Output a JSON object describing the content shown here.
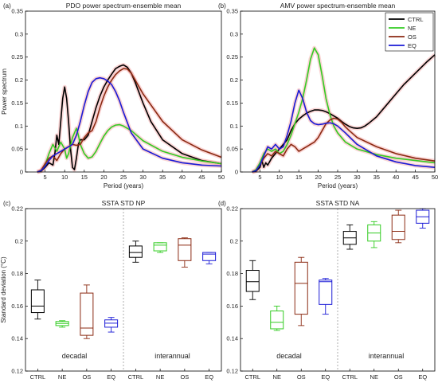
{
  "colors": {
    "CTRL": "#000000",
    "NE": "#33cc22",
    "OS": "#8b2a12",
    "EQ": "#1a1ad6",
    "band": "#f6b3b3",
    "divider": "#999999"
  },
  "chart_data": [
    {
      "type": "line",
      "panel_label": "(a)",
      "title": "PDO power spectrum-ensemble mean",
      "xlabel": "Period (years)",
      "ylabel": "Power spectrum",
      "xlim": [
        0,
        50
      ],
      "ylim": [
        0,
        0.35
      ],
      "xticks": [
        "5",
        "10",
        "15",
        "20",
        "25",
        "30",
        "35",
        "40",
        "45",
        "50"
      ],
      "yticks": [
        "0",
        "0.05",
        "0.1",
        "0.15",
        "0.2",
        "0.25",
        "0.3",
        "0.35"
      ],
      "grid": false,
      "series": [
        {
          "name": "CTRL",
          "x": [
            3,
            4,
            5,
            6,
            7,
            7.5,
            8,
            8.5,
            9,
            9.5,
            10,
            10.5,
            11,
            11.5,
            12,
            12.5,
            13,
            13.5,
            14,
            15,
            16,
            17,
            18,
            19,
            20,
            21,
            22,
            23,
            24,
            25,
            26,
            27,
            28,
            30,
            32,
            35,
            40,
            45,
            50
          ],
          "y": [
            0,
            0.002,
            0.01,
            0.02,
            0.015,
            0.04,
            0.08,
            0.06,
            0.11,
            0.16,
            0.185,
            0.16,
            0.11,
            0.05,
            0.01,
            0.005,
            0.03,
            0.06,
            0.07,
            0.07,
            0.08,
            0.11,
            0.14,
            0.165,
            0.185,
            0.2,
            0.213,
            0.225,
            0.23,
            0.233,
            0.228,
            0.215,
            0.195,
            0.15,
            0.11,
            0.07,
            0.04,
            0.025,
            0.018
          ]
        },
        {
          "name": "NE",
          "x": [
            3,
            4,
            5,
            6,
            7,
            8,
            9,
            10,
            10.5,
            11,
            12,
            13,
            13.5,
            14,
            15,
            16,
            17,
            18,
            19,
            20,
            21,
            22,
            23,
            24,
            25,
            27,
            30,
            35,
            40,
            45,
            50
          ],
          "y": [
            0,
            0.003,
            0.015,
            0.04,
            0.06,
            0.045,
            0.065,
            0.05,
            0.03,
            0.04,
            0.075,
            0.095,
            0.08,
            0.06,
            0.04,
            0.03,
            0.033,
            0.045,
            0.062,
            0.078,
            0.09,
            0.098,
            0.102,
            0.103,
            0.1,
            0.09,
            0.068,
            0.045,
            0.032,
            0.024,
            0.018
          ]
        },
        {
          "name": "OS",
          "x": [
            3,
            4,
            5,
            6,
            7,
            8,
            9,
            10,
            11,
            12,
            13,
            14,
            15,
            16,
            17,
            18,
            19,
            20,
            21,
            22,
            23,
            24,
            25,
            26,
            27,
            28,
            30,
            35,
            40,
            45,
            50
          ],
          "y": [
            0,
            0.004,
            0.018,
            0.03,
            0.035,
            0.025,
            0.04,
            0.05,
            0.055,
            0.06,
            0.058,
            0.06,
            0.075,
            0.085,
            0.09,
            0.11,
            0.14,
            0.165,
            0.185,
            0.2,
            0.212,
            0.22,
            0.225,
            0.224,
            0.215,
            0.2,
            0.17,
            0.11,
            0.07,
            0.048,
            0.032
          ]
        },
        {
          "name": "EQ",
          "x": [
            3,
            4,
            5,
            6,
            7,
            8,
            9,
            10,
            11,
            12,
            13,
            14,
            15,
            16,
            17,
            18,
            19,
            20,
            21,
            22,
            23,
            24,
            25,
            27,
            30,
            35,
            40,
            45,
            50
          ],
          "y": [
            0,
            0.003,
            0.012,
            0.025,
            0.035,
            0.04,
            0.045,
            0.05,
            0.055,
            0.06,
            0.08,
            0.11,
            0.145,
            0.175,
            0.195,
            0.203,
            0.205,
            0.203,
            0.198,
            0.19,
            0.175,
            0.155,
            0.13,
            0.085,
            0.05,
            0.03,
            0.02,
            0.015,
            0.013
          ]
        }
      ]
    },
    {
      "type": "line",
      "panel_label": "(b)",
      "title": "AMV power spectrum-ensemble mean",
      "xlabel": "Period (years)",
      "ylabel": "",
      "xlim": [
        0,
        50
      ],
      "ylim": [
        0,
        0.35
      ],
      "xticks": [
        "5",
        "10",
        "15",
        "20",
        "25",
        "30",
        "35",
        "40",
        "45",
        "50"
      ],
      "yticks": [
        "0",
        "0.05",
        "0.1",
        "0.15",
        "0.2",
        "0.25",
        "0.3",
        "0.35"
      ],
      "legend": [
        "CTRL",
        "NE",
        "OS",
        "EQ"
      ],
      "legend_position": "top-right",
      "grid": false,
      "series": [
        {
          "name": "CTRL",
          "x": [
            3,
            4,
            5,
            5.5,
            6,
            6.5,
            7,
            8,
            9,
            10,
            11,
            12,
            13,
            14,
            15,
            16,
            17,
            18,
            19,
            20,
            21,
            22,
            23,
            24,
            25,
            26,
            27,
            28,
            29,
            30,
            31,
            32,
            33,
            35,
            38,
            40,
            42,
            45,
            48,
            50
          ],
          "y": [
            0,
            0.002,
            0.01,
            0.025,
            0.01,
            0.02,
            0.015,
            0.03,
            0.04,
            0.05,
            0.06,
            0.07,
            0.09,
            0.105,
            0.115,
            0.122,
            0.128,
            0.132,
            0.135,
            0.135,
            0.134,
            0.131,
            0.127,
            0.122,
            0.117,
            0.11,
            0.104,
            0.099,
            0.096,
            0.095,
            0.096,
            0.1,
            0.106,
            0.12,
            0.15,
            0.17,
            0.19,
            0.215,
            0.24,
            0.255
          ]
        },
        {
          "name": "NE",
          "x": [
            3,
            4,
            5,
            6,
            7,
            8,
            9,
            10,
            11,
            12,
            13,
            14,
            15,
            16,
            17,
            18,
            19,
            20,
            21,
            22,
            23,
            24,
            25,
            27,
            30,
            35,
            40,
            45,
            50
          ],
          "y": [
            0,
            0.005,
            0.02,
            0.04,
            0.05,
            0.045,
            0.05,
            0.04,
            0.045,
            0.06,
            0.08,
            0.105,
            0.13,
            0.16,
            0.2,
            0.245,
            0.27,
            0.255,
            0.21,
            0.16,
            0.125,
            0.1,
            0.085,
            0.065,
            0.05,
            0.038,
            0.03,
            0.025,
            0.02
          ]
        },
        {
          "name": "OS",
          "x": [
            3,
            4,
            5,
            6,
            7,
            8,
            9,
            10,
            11,
            12,
            13,
            14,
            15,
            16,
            17,
            18,
            19,
            20,
            21,
            22,
            23,
            24,
            25,
            26,
            27,
            28,
            30,
            35,
            40,
            45,
            50
          ],
          "y": [
            0,
            0.003,
            0.015,
            0.03,
            0.04,
            0.035,
            0.045,
            0.04,
            0.035,
            0.05,
            0.06,
            0.055,
            0.045,
            0.05,
            0.055,
            0.06,
            0.065,
            0.075,
            0.09,
            0.105,
            0.113,
            0.117,
            0.115,
            0.108,
            0.098,
            0.09,
            0.075,
            0.055,
            0.04,
            0.03,
            0.024
          ]
        },
        {
          "name": "EQ",
          "x": [
            3,
            4,
            5,
            6,
            7,
            8,
            9,
            10,
            11,
            12,
            13,
            14,
            15,
            16,
            17,
            18,
            19,
            20,
            21,
            22,
            23,
            24,
            25,
            27,
            30,
            35,
            40,
            45,
            50
          ],
          "y": [
            0,
            0.003,
            0.015,
            0.035,
            0.055,
            0.05,
            0.06,
            0.05,
            0.055,
            0.08,
            0.11,
            0.15,
            0.178,
            0.16,
            0.13,
            0.112,
            0.105,
            0.103,
            0.104,
            0.106,
            0.107,
            0.105,
            0.1,
            0.085,
            0.06,
            0.035,
            0.022,
            0.014,
            0.01
          ]
        }
      ]
    },
    {
      "type": "box",
      "panel_label": "(c)",
      "title": "SSTA STD NP",
      "ylabel": "Standard deviation (°C)",
      "categories": [
        "CTRL",
        "NE",
        "OS",
        "EQ",
        "CTRL",
        "NE",
        "OS",
        "EQ"
      ],
      "groups": [
        "decadal",
        "interannual"
      ],
      "ylim": [
        0.12,
        0.22
      ],
      "yticks": [
        "0.12",
        "0.14",
        "0.16",
        "0.18",
        "0.2",
        "0.22"
      ],
      "boxes": [
        {
          "group": "decadal",
          "name": "CTRL",
          "min": 0.152,
          "q1": 0.156,
          "median": 0.16,
          "q3": 0.17,
          "max": 0.176
        },
        {
          "group": "decadal",
          "name": "NE",
          "min": 0.147,
          "q1": 0.148,
          "median": 0.1493,
          "q3": 0.1505,
          "max": 0.151
        },
        {
          "group": "decadal",
          "name": "OS",
          "min": 0.14,
          "q1": 0.142,
          "median": 0.1465,
          "q3": 0.168,
          "max": 0.173
        },
        {
          "group": "decadal",
          "name": "EQ",
          "min": 0.144,
          "q1": 0.147,
          "median": 0.1495,
          "q3": 0.1515,
          "max": 0.153
        },
        {
          "group": "interannual",
          "name": "CTRL",
          "min": 0.187,
          "q1": 0.19,
          "median": 0.193,
          "q3": 0.197,
          "max": 0.2
        },
        {
          "group": "interannual",
          "name": "NE",
          "min": 0.193,
          "q1": 0.194,
          "median": 0.1975,
          "q3": 0.199,
          "max": 0.199
        },
        {
          "group": "interannual",
          "name": "OS",
          "min": 0.184,
          "q1": 0.188,
          "median": 0.1975,
          "q3": 0.2015,
          "max": 0.202
        },
        {
          "group": "interannual",
          "name": "EQ",
          "min": 0.186,
          "q1": 0.188,
          "median": 0.192,
          "q3": 0.193,
          "max": 0.193
        }
      ]
    },
    {
      "type": "box",
      "panel_label": "(d)",
      "title": "SSTA STD NA",
      "ylabel": "",
      "categories": [
        "CTRL",
        "NE",
        "OS",
        "EQ",
        "CTRL",
        "NE",
        "OS",
        "EQ"
      ],
      "groups": [
        "decadal",
        "interannual"
      ],
      "ylim": [
        0.12,
        0.22
      ],
      "yticks": [
        "0.12",
        "0.14",
        "0.16",
        "0.18",
        "0.2",
        "0.22"
      ],
      "boxes": [
        {
          "group": "decadal",
          "name": "CTRL",
          "min": 0.164,
          "q1": 0.169,
          "median": 0.175,
          "q3": 0.182,
          "max": 0.188
        },
        {
          "group": "decadal",
          "name": "NE",
          "min": 0.145,
          "q1": 0.146,
          "median": 0.15,
          "q3": 0.157,
          "max": 0.16
        },
        {
          "group": "decadal",
          "name": "OS",
          "min": 0.148,
          "q1": 0.155,
          "median": 0.174,
          "q3": 0.187,
          "max": 0.19
        },
        {
          "group": "decadal",
          "name": "EQ",
          "min": 0.155,
          "q1": 0.161,
          "median": 0.175,
          "q3": 0.176,
          "max": 0.177
        },
        {
          "group": "interannual",
          "name": "CTRL",
          "min": 0.195,
          "q1": 0.198,
          "median": 0.202,
          "q3": 0.206,
          "max": 0.21
        },
        {
          "group": "interannual",
          "name": "NE",
          "min": 0.196,
          "q1": 0.2,
          "median": 0.205,
          "q3": 0.21,
          "max": 0.212
        },
        {
          "group": "interannual",
          "name": "OS",
          "min": 0.199,
          "q1": 0.201,
          "median": 0.206,
          "q3": 0.216,
          "max": 0.219
        },
        {
          "group": "interannual",
          "name": "EQ",
          "min": 0.208,
          "q1": 0.211,
          "median": 0.215,
          "q3": 0.219,
          "max": 0.22
        }
      ]
    }
  ]
}
